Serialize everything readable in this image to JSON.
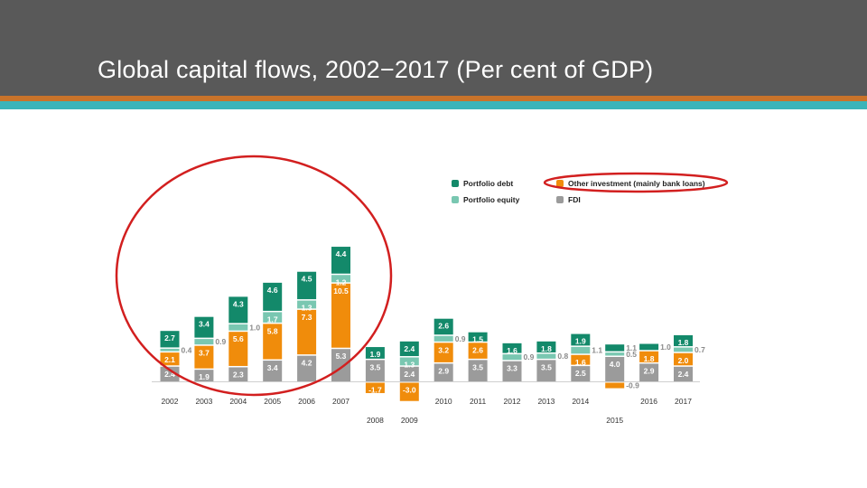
{
  "slide": {
    "title": "Global capital flows, 2002−2017 (Per cent of GDP)"
  },
  "colors": {
    "portfolio_debt": "#13896a",
    "portfolio_equity": "#79c7b1",
    "other_investment": "#f08c0b",
    "fdi": "#9b9b9b",
    "annotation": "#d21f1f",
    "header": "#595959",
    "stripe_orange": "#c9732a",
    "stripe_teal": "#3ab4b9"
  },
  "legend": {
    "portfolio_debt": "Portfolio debt",
    "portfolio_equity": "Portfolio equity",
    "other_investment": "Other investment (mainly bank loans)",
    "fdi": "FDI"
  },
  "chart_data": {
    "type": "bar",
    "stacked": true,
    "categories": [
      "2002",
      "2003",
      "2004",
      "2005",
      "2006",
      "2007",
      "2008",
      "2009",
      "2010",
      "2011",
      "2012",
      "2013",
      "2014",
      "2015",
      "2016",
      "2017"
    ],
    "series": [
      {
        "name": "FDI",
        "values": [
          2.4,
          1.9,
          2.3,
          3.4,
          4.2,
          5.3,
          3.5,
          2.4,
          2.9,
          3.5,
          3.3,
          3.5,
          2.5,
          4.0,
          2.9,
          2.4
        ]
      },
      {
        "name": "Other investment (mainly bank loans)",
        "values": [
          2.1,
          3.7,
          5.6,
          5.8,
          7.3,
          10.5,
          -1.7,
          -3.0,
          3.2,
          2.6,
          null,
          null,
          1.6,
          -0.9,
          1.8,
          2.0
        ]
      },
      {
        "name": "Portfolio equity",
        "values": [
          0.4,
          0.9,
          1.0,
          1.7,
          1.3,
          1.2,
          null,
          1.3,
          0.9,
          null,
          0.9,
          0.8,
          1.1,
          0.5,
          null,
          0.7
        ]
      },
      {
        "name": "Portfolio debt",
        "values": [
          2.7,
          3.4,
          4.3,
          4.6,
          4.5,
          4.4,
          1.9,
          2.4,
          2.6,
          1.5,
          1.6,
          1.8,
          1.9,
          1.1,
          1.0,
          1.8
        ]
      }
    ]
  }
}
